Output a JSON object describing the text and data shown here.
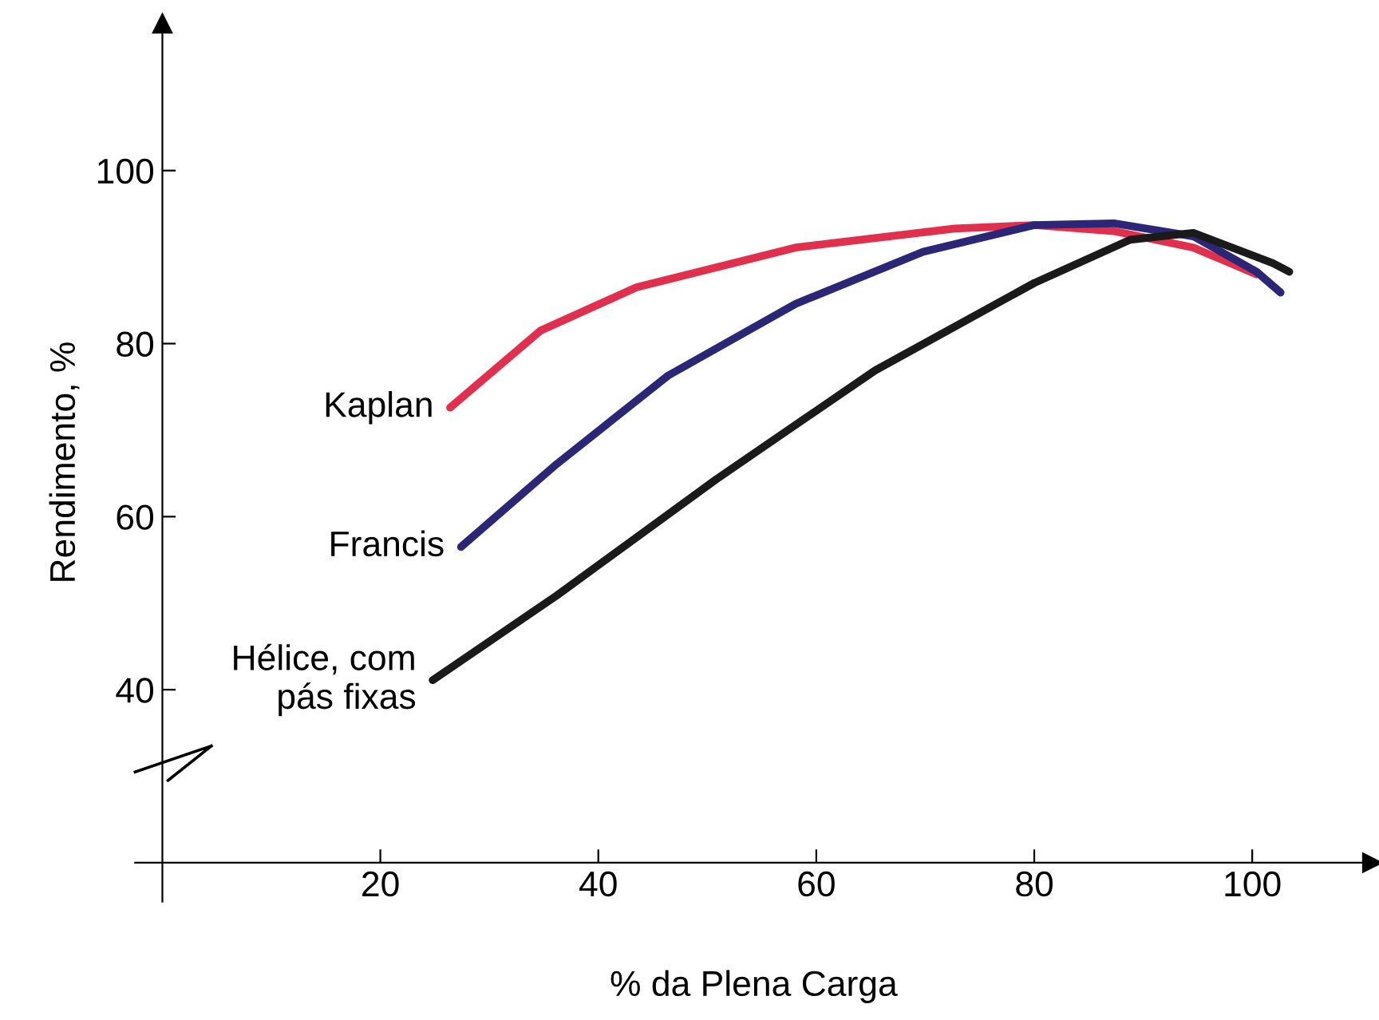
{
  "chart_data": {
    "type": "line",
    "xlabel": "% da Plena Carga",
    "ylabel": "Rendimento, %",
    "xlim": [
      -2.5,
      111
    ],
    "ylim": [
      15.5,
      117
    ],
    "xticks": [
      20,
      40,
      60,
      80,
      100
    ],
    "yticks": [
      40,
      60,
      80,
      100
    ],
    "grid": false,
    "legend": false,
    "marker": "none",
    "line_style": "solid",
    "series": [
      {
        "name": "Kaplan",
        "color": "#e0304e",
        "x": [
          26.4,
          34.7,
          43.5,
          58.1,
          72.7,
          80,
          87.3,
          94.6,
          100.4
        ],
        "values": [
          72.6,
          81.5,
          86.5,
          91.1,
          93.3,
          93.7,
          93.0,
          91.1,
          88.0
        ]
      },
      {
        "name": "Francis",
        "color": "#2b2675",
        "x": [
          27.4,
          36.2,
          46.4,
          58.1,
          69.8,
          80,
          87.3,
          94.6,
          100.4,
          102.6
        ],
        "values": [
          56.5,
          66.1,
          76.3,
          84.6,
          90.6,
          93.7,
          93.9,
          92.4,
          88.3,
          85.9
        ]
      },
      {
        "name": "Hélice, com\npás fixas",
        "color": "#1a1a1a",
        "x": [
          24.8,
          36.2,
          50.8,
          65.4,
          80,
          88.8,
          94.6,
          101.9,
          103.4
        ],
        "values": [
          41.1,
          50.9,
          64.3,
          76.9,
          87.0,
          92.0,
          92.8,
          89.3,
          88.3
        ]
      }
    ]
  }
}
